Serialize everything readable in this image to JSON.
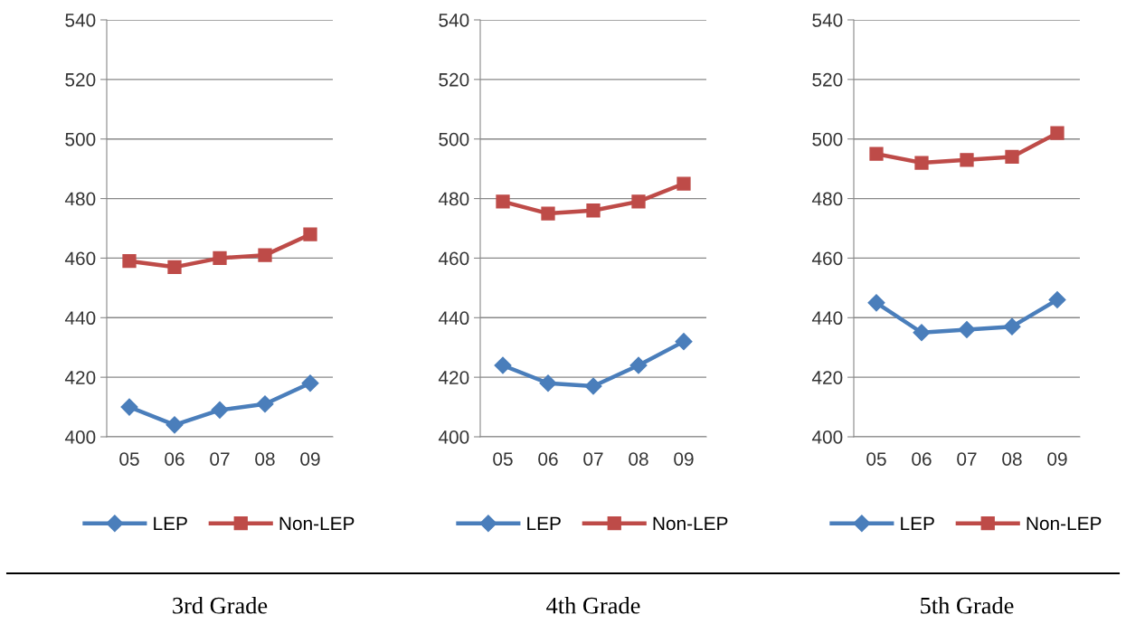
{
  "chart_data": [
    {
      "type": "line",
      "title": "3rd Grade",
      "categories": [
        "05",
        "06",
        "07",
        "08",
        "09"
      ],
      "ylim": [
        400,
        540
      ],
      "yticks": [
        400,
        420,
        440,
        460,
        480,
        500,
        520,
        540
      ],
      "grid": "y",
      "legend": "bottom",
      "series": [
        {
          "name": "LEP",
          "color": "#4a7ebb",
          "marker": "diamond",
          "values": [
            410,
            404,
            409,
            411,
            418
          ]
        },
        {
          "name": "Non-LEP",
          "color": "#be4b48",
          "marker": "square",
          "values": [
            459,
            457,
            460,
            461,
            468
          ]
        }
      ]
    },
    {
      "type": "line",
      "title": "4th Grade",
      "categories": [
        "05",
        "06",
        "07",
        "08",
        "09"
      ],
      "ylim": [
        400,
        540
      ],
      "yticks": [
        400,
        420,
        440,
        460,
        480,
        500,
        520,
        540
      ],
      "grid": "y",
      "legend": "bottom",
      "series": [
        {
          "name": "LEP",
          "color": "#4a7ebb",
          "marker": "diamond",
          "values": [
            424,
            418,
            417,
            424,
            432
          ]
        },
        {
          "name": "Non-LEP",
          "color": "#be4b48",
          "marker": "square",
          "values": [
            479,
            475,
            476,
            479,
            485
          ]
        }
      ]
    },
    {
      "type": "line",
      "title": "5th Grade",
      "categories": [
        "05",
        "06",
        "07",
        "08",
        "09"
      ],
      "ylim": [
        400,
        540
      ],
      "yticks": [
        400,
        420,
        440,
        460,
        480,
        500,
        520,
        540
      ],
      "grid": "y",
      "legend": "bottom",
      "series": [
        {
          "name": "LEP",
          "color": "#4a7ebb",
          "marker": "diamond",
          "values": [
            445,
            435,
            436,
            437,
            446
          ]
        },
        {
          "name": "Non-LEP",
          "color": "#be4b48",
          "marker": "square",
          "values": [
            495,
            492,
            493,
            494,
            502
          ]
        }
      ]
    }
  ]
}
